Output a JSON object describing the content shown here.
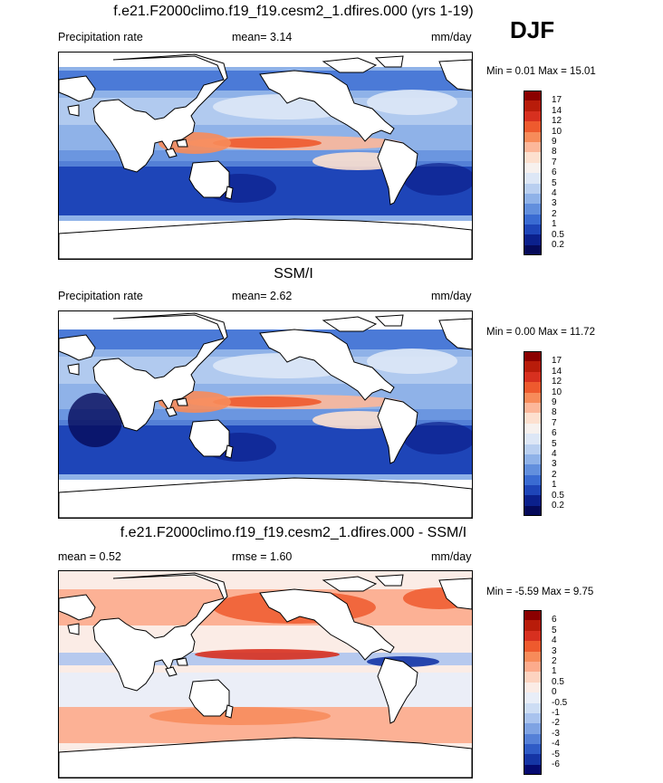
{
  "season": "DJF",
  "panels": [
    {
      "title": "f.e21.F2000climo.f19_f19.cesm2_1.dfires.000 (yrs 1-19)",
      "left_label": "Precipitation rate",
      "mid_label": "mean=   3.14",
      "right_label": "mm/day",
      "minmax": "Min =   0.01 Max =  15.01",
      "colorbar_labels": [
        "17",
        "14",
        "12",
        "10",
        "9",
        "8",
        "7",
        "6",
        "5",
        "4",
        "3",
        "2",
        "1",
        "0.5",
        "0.2"
      ],
      "colorbar_colors": [
        "#8b0000",
        "#b81c0a",
        "#d7301f",
        "#ee5a2e",
        "#f78b5a",
        "#fcb79a",
        "#fde0cf",
        "#f7f1ee",
        "#dde7f6",
        "#b9cff0",
        "#8fb2e8",
        "#628fdd",
        "#3a6bd2",
        "#1e45b8",
        "#0b208c",
        "#050a5a"
      ]
    },
    {
      "title": "SSM/I",
      "left_label": "Precipitation rate",
      "mid_label": "mean=   2.62",
      "right_label": "mm/day",
      "minmax": "Min =   0.00 Max =  11.72",
      "colorbar_labels": [
        "17",
        "14",
        "12",
        "10",
        "9",
        "8",
        "7",
        "6",
        "5",
        "4",
        "3",
        "2",
        "1",
        "0.5",
        "0.2"
      ],
      "colorbar_colors": [
        "#8b0000",
        "#b81c0a",
        "#d7301f",
        "#ee5a2e",
        "#f78b5a",
        "#fcb79a",
        "#fde0cf",
        "#f7f1ee",
        "#dde7f6",
        "#b9cff0",
        "#8fb2e8",
        "#628fdd",
        "#3a6bd2",
        "#1e45b8",
        "#0b208c",
        "#050a5a"
      ]
    },
    {
      "title": "f.e21.F2000climo.f19_f19.cesm2_1.dfires.000 - SSM/I",
      "left_label": "mean =   0.52",
      "mid_label": "rmse =   1.60",
      "right_label": "mm/day",
      "minmax": "Min =  -5.59 Max =   9.75",
      "colorbar_labels": [
        "6",
        "5",
        "4",
        "3",
        "2",
        "1",
        "0.5",
        "0",
        "-0.5",
        "-1",
        "-2",
        "-3",
        "-4",
        "-5",
        "-6"
      ],
      "colorbar_colors": [
        "#8b0000",
        "#b81c0a",
        "#d7301f",
        "#ee5a2e",
        "#f78b5a",
        "#fcab8c",
        "#fdd3c0",
        "#fbece6",
        "#e9eef8",
        "#cdddf4",
        "#a9c3ee",
        "#7fa3e3",
        "#5580d7",
        "#2f5bc6",
        "#1535a5",
        "#050a70"
      ]
    }
  ]
}
